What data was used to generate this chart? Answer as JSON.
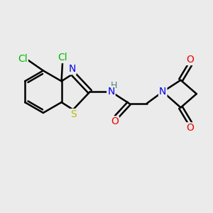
{
  "background_color": "#ebebeb",
  "bond_color": "#000000",
  "bond_width": 1.8,
  "atom_colors": {
    "Cl": "#00bb00",
    "N": "#0000ee",
    "S": "#bbbb00",
    "O": "#ee0000",
    "H": "#4a8080",
    "C": "#000000"
  },
  "font_size_atom": 10,
  "fig_width": 3.0,
  "fig_height": 3.0,
  "dpi": 100
}
